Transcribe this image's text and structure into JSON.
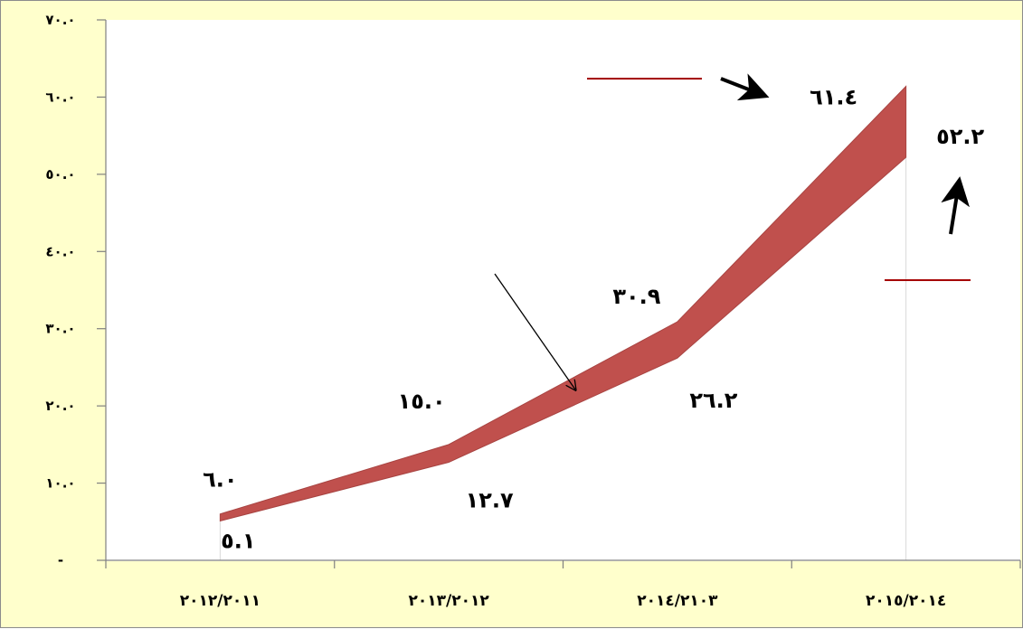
{
  "chart_data": {
    "type": "area",
    "categories": [
      "٢٠١٢/٢٠١١",
      "٢٠١٣/٢٠١٢",
      "٢٠١٤/٢١٠٣",
      "٢٠١٥/٢٠١٤"
    ],
    "series": [
      {
        "values": [
          6.0,
          15.0,
          30.9,
          61.4
        ]
      },
      {
        "values": [
          5.1,
          12.7,
          26.2,
          52.2
        ]
      }
    ],
    "data_labels_upper": [
      "٦.٠",
      "١٥.٠",
      "٣٠.٩",
      "٦١.٤"
    ],
    "data_labels_lower": [
      "٥.١",
      "١٢.٧",
      "٢٦.٢",
      "٥٢.٢"
    ],
    "ylim": [
      0,
      70
    ],
    "yticks": [
      0,
      10,
      20,
      30,
      40,
      50,
      60,
      70
    ],
    "ytick_labels": [
      "-",
      "١٠.٠",
      "٢٠.٠",
      "٣٠.٠",
      "٤٠.٠",
      "٥٠.٠",
      "٦٠.٠",
      "٧٠.٠"
    ],
    "title": "",
    "xlabel": "",
    "ylabel": "",
    "grid": false,
    "band_color": "#c0504d",
    "band_edge_color": "#a84442",
    "plot_background": "#ffffff",
    "chart_background": "#ffffcc",
    "annotation_line_color": "#a50000"
  }
}
